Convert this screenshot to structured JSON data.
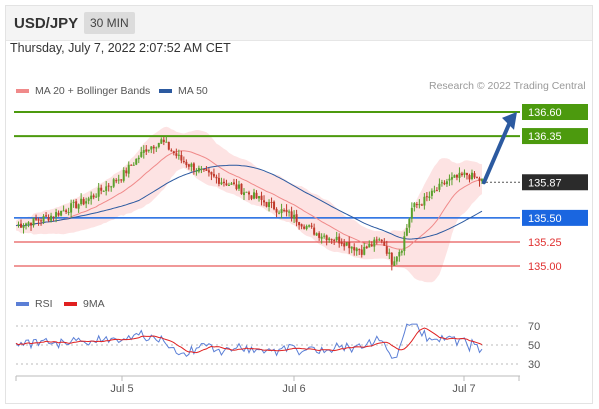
{
  "header": {
    "symbol": "USD/JPY",
    "timeframe": "30 MIN",
    "datetime": "Thursday, July 7, 2022 2:07:52 AM CET"
  },
  "legend": {
    "ma20": {
      "label": "MA 20 + Bollinger Bands",
      "color": "#f08a8a"
    },
    "ma50": {
      "label": "MA 50",
      "color": "#2c5aa0"
    },
    "credit": "Research © 2022 Trading Central"
  },
  "rsi_legend": {
    "rsi": {
      "label": "RSI",
      "color": "#5b7fd6"
    },
    "ma9": {
      "label": "9MA",
      "color": "#e02020"
    }
  },
  "chart_data": [
    {
      "type": "candlestick",
      "title": "USD/JPY",
      "x_tick_labels": [
        "Jul 5",
        "Jul 6",
        "Jul 7"
      ],
      "ylim": [
        134.9,
        136.7
      ],
      "current_price": "135.87",
      "levels": [
        {
          "value": 136.6,
          "label": "136.60",
          "kind": "target",
          "color": "#4c9a0e"
        },
        {
          "value": 136.35,
          "label": "136.35",
          "kind": "resistance",
          "color": "#4c9a0e"
        },
        {
          "value": 135.5,
          "label": "135.50",
          "kind": "pivot",
          "color": "#1a66e0"
        },
        {
          "value": 135.25,
          "label": "135.25",
          "kind": "support",
          "color": "#e03030"
        },
        {
          "value": 135.0,
          "label": "135.00",
          "kind": "support",
          "color": "#e03030"
        }
      ],
      "arrow": {
        "from": 135.87,
        "to": 136.57,
        "color": "#2c5aa0"
      },
      "colors": {
        "up": "#5aa02c",
        "down": "#c0392b",
        "band": "#fde3e3"
      }
    },
    {
      "type": "line",
      "title": "RSI",
      "ylim": [
        20,
        80
      ],
      "y_ticks": [
        "70",
        "50",
        "30"
      ],
      "series": [
        {
          "name": "RSI",
          "color": "#5b7fd6"
        },
        {
          "name": "9MA",
          "color": "#e02020"
        }
      ]
    }
  ]
}
